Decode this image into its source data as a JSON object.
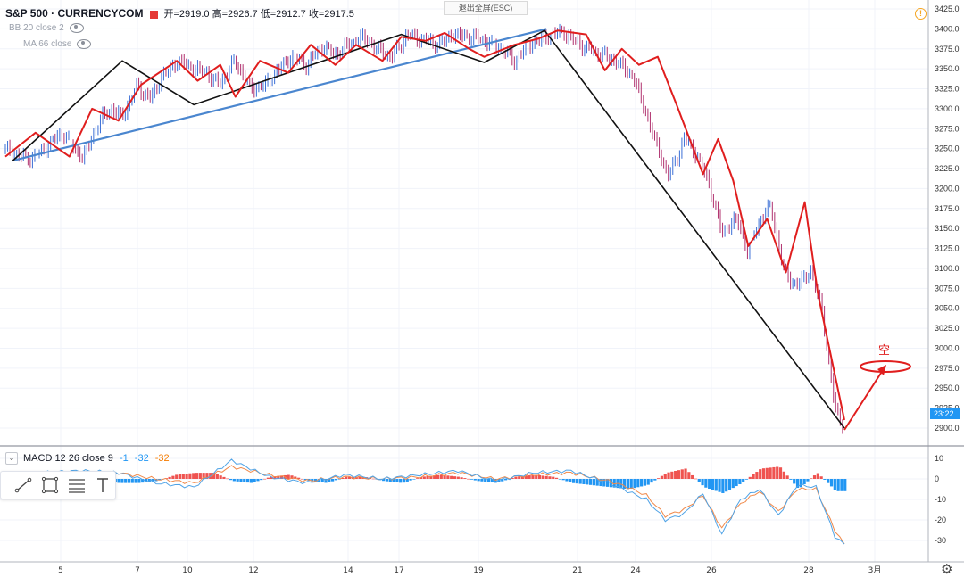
{
  "header": {
    "symbol": "S&P 500 · CURRENCYCOM",
    "ohlc": "开=2919.0  高=2926.7  低=2912.7  收=2917.5",
    "bb_label": "BB 20 close 2",
    "ma_label": "MA 66 close",
    "exit_fullscreen": "退出全屏(ESC)",
    "alert_icon": "alert-icon"
  },
  "price_axis": {
    "ticks": [
      "3425.0",
      "3400.0",
      "3375.0",
      "3350.0",
      "3325.0",
      "3300.0",
      "3275.0",
      "3250.0",
      "3225.0",
      "3200.0",
      "3175.0",
      "3150.0",
      "3125.0",
      "3100.0",
      "3075.0",
      "3050.0",
      "3025.0",
      "3000.0",
      "2975.0",
      "2950.0",
      "2925.0",
      "2900.0"
    ],
    "last_label": "23:22",
    "last_color": "#2196f3"
  },
  "macd": {
    "label": "MACD 12 26 close 9",
    "v1": "-1",
    "v2": "-32",
    "v3": "-32",
    "ticks": [
      "10",
      "0",
      "-10",
      "-20",
      "-30"
    ]
  },
  "time_axis": {
    "ticks": [
      "5",
      "7",
      "10",
      "12",
      "14",
      "17",
      "19",
      "21",
      "24",
      "26",
      "28",
      "3月"
    ]
  },
  "annotation": {
    "text": "空"
  },
  "toolbar": {
    "icons": [
      "trend-line-icon",
      "rectangle-icon",
      "fib-icon",
      "text-icon"
    ]
  },
  "colors": {
    "zigzag_red": "#e01e1e",
    "trend_black": "#111111",
    "trend_blue": "#4a86cf",
    "candle_up": "#3b6fd6",
    "candle_down": "#b0316e",
    "macd_pos": "#ef5350",
    "macd_neg": "#2196f3",
    "macd_line": "#4fa3e6",
    "signal_line": "#f08a4b"
  },
  "chart_data": {
    "type": "line",
    "title": "S&P 500 · CURRENCYCOM",
    "ylim": [
      2890,
      3430
    ],
    "x_ticks": [
      "5",
      "7",
      "10",
      "12",
      "14",
      "17",
      "19",
      "21",
      "24",
      "26",
      "28",
      "3月"
    ],
    "series": [
      {
        "name": "",
        "x": [
          0,
          0.8,
          1.5,
          3,
          4.1,
          5,
          5.6,
          6.2,
          7,
          7.7,
          8.3,
          9.2,
          10,
          10.7,
          11.3,
          12.2,
          13,
          13.8,
          14.5,
          15.2,
          16,
          16.8,
          17.5,
          18.2,
          19,
          19.7,
          20.5,
          21.3,
          22,
          23,
          23.7,
          24.7,
          25.5,
          26.3,
          27,
          27.9,
          28.6,
          29.5,
          30.2,
          30.9,
          31.6,
          32.5,
          33.3,
          33.9,
          34.6,
          35.2,
          36,
          36.6,
          37.3,
          38,
          38.8,
          39.4,
          40,
          40.6,
          41.3,
          42,
          42.7,
          43.3,
          44,
          44.5
        ],
        "values": [
          3250,
          3240,
          3238,
          3270,
          3238,
          3285,
          3300,
          3290,
          3328,
          3312,
          3340,
          3360,
          3350,
          3345,
          3330,
          3360,
          3325,
          3330,
          3350,
          3365,
          3355,
          3378,
          3368,
          3380,
          3390,
          3375,
          3365,
          3392,
          3388,
          3380,
          3393,
          3390,
          3385,
          3375,
          3360,
          3382,
          3388,
          3397,
          3385,
          3375,
          3368,
          3358,
          3340,
          3300,
          3250,
          3215,
          3262,
          3245,
          3208,
          3145,
          3162,
          3120,
          3160,
          3178,
          3095,
          3078,
          3098,
          3050,
          2925,
          2900
        ]
      }
    ],
    "zigzag_red": {
      "x": [
        0,
        1.6,
        3.4,
        4.6,
        6,
        7.2,
        9.1,
        10.2,
        11.4,
        12.2,
        13.5,
        15,
        16.2,
        17.5,
        18.6,
        20,
        21,
        22.3,
        23.3,
        24.6,
        25.4,
        27,
        28.3,
        29.3,
        30.8,
        31.8,
        32.7,
        33.6,
        34.6,
        35.6,
        37,
        37.8,
        38.6,
        39.4,
        40.4,
        41.4,
        42.4,
        43.1,
        44.5
      ],
      "values": [
        3240,
        3270,
        3240,
        3300,
        3285,
        3330,
        3360,
        3335,
        3355,
        3315,
        3360,
        3345,
        3380,
        3355,
        3380,
        3360,
        3390,
        3385,
        3395,
        3375,
        3365,
        3380,
        3388,
        3398,
        3393,
        3348,
        3375,
        3355,
        3365,
        3305,
        3218,
        3262,
        3210,
        3128,
        3162,
        3095,
        3183,
        3068,
        2910
      ]
    },
    "trend_black": {
      "x": [
        0.4,
        6.2,
        10,
        21,
        25.4,
        28.6,
        44.5
      ],
      "values": [
        3235,
        3360,
        3305,
        3393,
        3358,
        3398,
        2900
      ]
    },
    "trend_blue": {
      "x": [
        0.4,
        28.7
      ],
      "values": [
        3235,
        3400
      ]
    },
    "macd_line": {
      "x": [
        0,
        2,
        4,
        6,
        8,
        10,
        12,
        14,
        16,
        18,
        20,
        22,
        24,
        26,
        28,
        30,
        32,
        33,
        34,
        35,
        36,
        37,
        38,
        39,
        40,
        41,
        42,
        43,
        44,
        44.5
      ],
      "values": [
        2,
        3,
        4,
        3,
        -2,
        -4,
        9,
        1,
        -2,
        2,
        0,
        2,
        4,
        -1,
        3,
        4,
        -2,
        -6,
        -10,
        -20,
        -17,
        -7,
        -27,
        -10,
        -5,
        -18,
        -3,
        -4,
        -28,
        -32
      ]
    },
    "signal_line": {
      "x": [
        0,
        2,
        4,
        6,
        8,
        10,
        12,
        14,
        16,
        18,
        20,
        22,
        24,
        26,
        28,
        30,
        32,
        33,
        34,
        35,
        36,
        37,
        38,
        39,
        40,
        41,
        42,
        43,
        44,
        44.5
      ],
      "values": [
        1,
        2,
        3,
        3,
        0,
        -2,
        6,
        2,
        -1,
        1,
        0,
        1,
        3,
        0,
        2,
        3,
        -1,
        -4,
        -8,
        -18,
        -15,
        -8,
        -24,
        -12,
        -6,
        -16,
        -5,
        -5,
        -25,
        -32
      ]
    },
    "macd_hist": {
      "x": [
        1,
        2,
        3,
        4,
        5,
        6,
        7,
        8,
        9,
        10,
        11,
        12,
        13,
        14,
        15,
        16,
        17,
        18,
        19,
        20,
        21,
        22,
        23,
        24,
        25,
        26,
        27,
        28,
        29,
        30,
        31,
        32,
        33,
        34,
        35,
        36,
        37,
        38,
        39,
        40,
        41,
        42,
        43,
        44
      ],
      "values": [
        1,
        1,
        1,
        0,
        -1,
        -2,
        -2,
        -1,
        2,
        3,
        3,
        -1,
        -2,
        1,
        2,
        -1,
        -2,
        1,
        1,
        -1,
        -2,
        1,
        2,
        1,
        -1,
        -2,
        1,
        2,
        1,
        -2,
        -3,
        -4,
        -5,
        -3,
        3,
        5,
        -4,
        -7,
        -2,
        5,
        6,
        -5,
        3,
        -6
      ]
    },
    "macd_ylim": [
      -35,
      14
    ]
  }
}
